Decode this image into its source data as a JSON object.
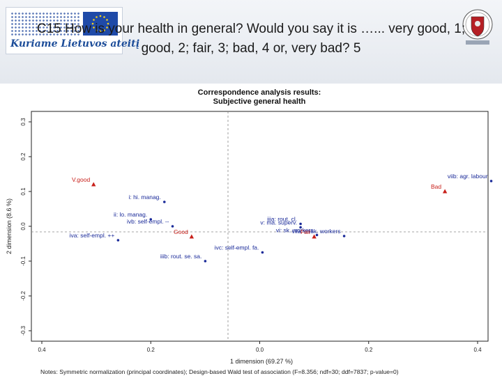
{
  "header": {
    "logo_text": "Kuriame Lietuvos ateitį",
    "question": "C15 How is your health in general? Would you say it is …... very good, 1; good, 2; fair, 3; bad, 4 or, very bad? 5"
  },
  "colors": {
    "occupation": "#1a2a99",
    "health": "#c8201a",
    "axis": "#222222",
    "zero_line": "#888888"
  },
  "chart_data": {
    "type": "scatter",
    "title": "Correspondence analysis results:",
    "subtitle": "Subjective general health",
    "xlabel": "1 dimension (69.27 %)",
    "ylabel": "2 dimension (8.6 %)",
    "xlim": [
      0.4,
      -0.4
    ],
    "ylim": [
      -0.3,
      0.3
    ],
    "xticks": [
      "0.4",
      "0.2",
      "0.0",
      "0.2",
      "0.4"
    ],
    "yticks": [
      "-0.3",
      "-0.2",
      "-0.1",
      "0.0",
      "0.1",
      "0.2",
      "0.3"
    ],
    "grid": false,
    "note": "Notes: Symmetric normalization (principal coordinates); Design-based Wald test of association (F=8.356; ndf=30; ddf=7837; p-value=0)",
    "series": [
      {
        "marker": "circle",
        "color": "#1a2a99",
        "points": [
          {
            "label": "i: hi. manag.",
            "x": 0.175,
            "y": 0.07
          },
          {
            "label": "ii: lo. manag.",
            "x": 0.2,
            "y": 0.02
          },
          {
            "label": "ivb: self-empl. --",
            "x": 0.16,
            "y": 0.0
          },
          {
            "label": "iva: self-empl. ++",
            "x": 0.26,
            "y": -0.04
          },
          {
            "label": "iiib: rout. se. sa.",
            "x": 0.1,
            "y": -0.1
          },
          {
            "label": "iiia: rout. cl.",
            "x": -0.075,
            "y": 0.007
          },
          {
            "label": "v: ma. superv.",
            "x": -0.075,
            "y": -0.003
          },
          {
            "label": "vi: sk. workers",
            "x": -0.105,
            "y": -0.025
          },
          {
            "label": "viia: unsk. workers",
            "x": -0.155,
            "y": -0.028
          },
          {
            "label": "ivc: self-empl. fa.",
            "x": -0.005,
            "y": -0.075
          },
          {
            "label": "viib: agr. labour",
            "x": -0.425,
            "y": 0.13
          }
        ]
      },
      {
        "marker": "triangle",
        "color": "#c8201a",
        "points": [
          {
            "label": "V.good",
            "x": 0.305,
            "y": 0.12
          },
          {
            "label": "Good",
            "x": 0.125,
            "y": -0.03
          },
          {
            "label": "Fair",
            "x": -0.1,
            "y": -0.03
          },
          {
            "label": "Bad",
            "x": -0.34,
            "y": 0.1
          }
        ]
      }
    ]
  }
}
